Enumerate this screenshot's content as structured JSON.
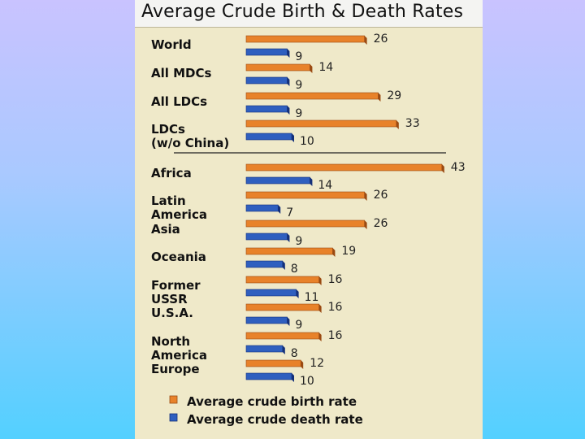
{
  "colors": {
    "birth": "#e8822a",
    "birth_side": "#9a4a12",
    "death": "#2f5fbf",
    "death_side": "#14307a",
    "panel": "#efe9c9"
  },
  "chart_data": {
    "type": "bar",
    "orientation": "horizontal",
    "title": "Average Crude Birth & Death Rates",
    "categories": [
      [
        "World"
      ],
      [
        "All MDCs"
      ],
      [
        "All LDCs"
      ],
      [
        "LDCs",
        "(w/o China)"
      ],
      [
        "Africa"
      ],
      [
        "Latin",
        "America"
      ],
      [
        "Asia"
      ],
      [
        "Oceania"
      ],
      [
        "Former",
        "USSR"
      ],
      [
        "U.S.A."
      ],
      [
        "North",
        "America"
      ],
      [
        "Europe"
      ]
    ],
    "separator_after_index": 3,
    "series": [
      {
        "name": "Average crude birth rate",
        "values": [
          26,
          14,
          29,
          33,
          43,
          26,
          26,
          19,
          16,
          16,
          16,
          12
        ]
      },
      {
        "name": "Average crude death rate",
        "values": [
          9,
          9,
          9,
          10,
          14,
          7,
          9,
          8,
          11,
          9,
          8,
          10
        ]
      }
    ],
    "xlim": [
      0,
      43
    ],
    "legend_position": "bottom",
    "grid": false
  }
}
